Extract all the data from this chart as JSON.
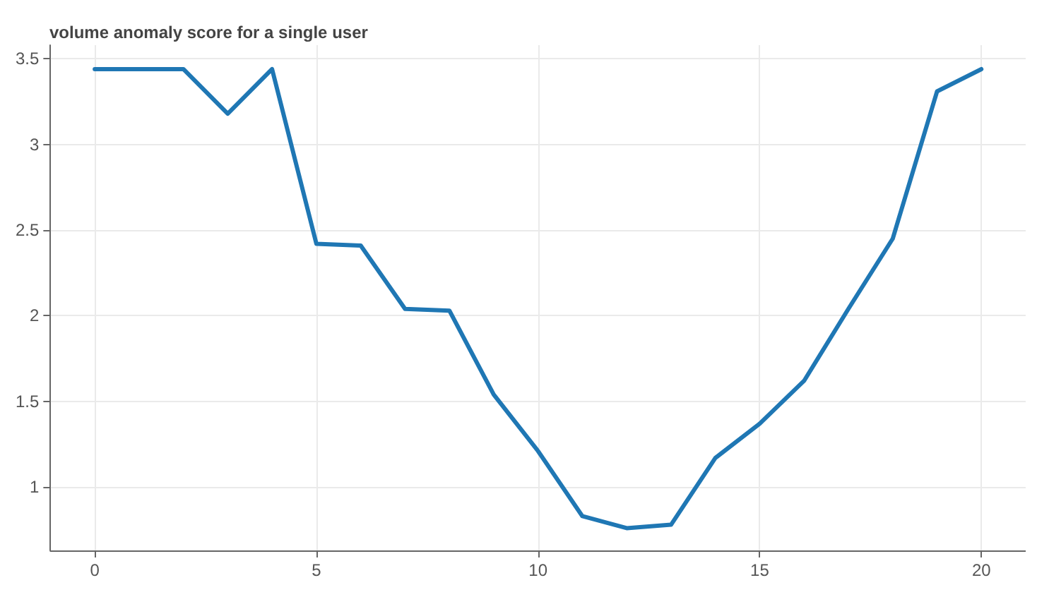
{
  "chart_data": {
    "type": "line",
    "title": "volume anomaly score for a single user",
    "x": [
      0,
      1,
      2,
      3,
      4,
      5,
      6,
      7,
      8,
      9,
      10,
      11,
      12,
      13,
      14,
      15,
      16,
      17,
      18,
      19,
      20
    ],
    "series": [
      {
        "color": "#1f77b4",
        "values": [
          3.44,
          3.44,
          3.44,
          3.18,
          3.44,
          2.42,
          2.41,
          2.04,
          2.03,
          1.54,
          1.21,
          0.83,
          0.76,
          0.78,
          1.17,
          1.37,
          1.62,
          2.04,
          2.45,
          3.31,
          3.44
        ]
      }
    ],
    "xlim": [
      -1,
      21
    ],
    "xticks": [
      0,
      5,
      10,
      15,
      20
    ],
    "ylim": [
      0.63,
      3.58
    ],
    "yticks": [
      1,
      1.5,
      2,
      2.5,
      3,
      3.5
    ],
    "grid": true,
    "marker": "none",
    "line_style": "solid"
  }
}
